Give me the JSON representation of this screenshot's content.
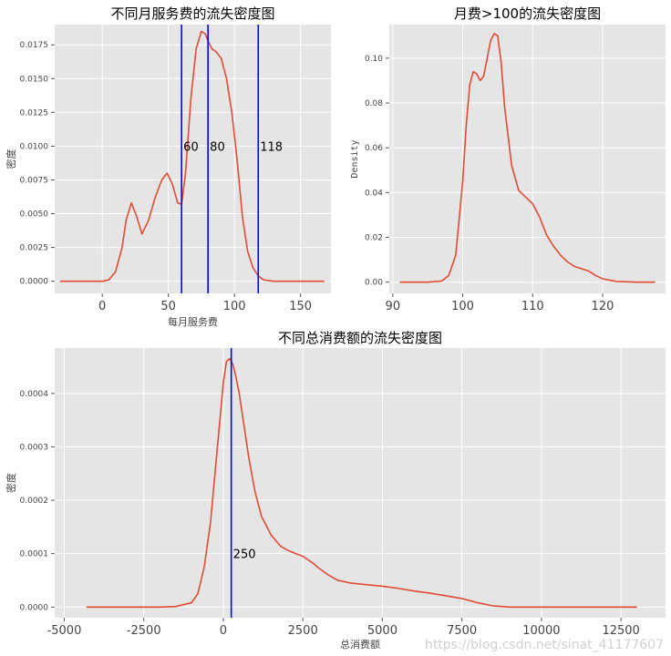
{
  "colors": {
    "panel_bg": "#e5e5e5",
    "grid": "#ffffff",
    "curve": "#e24a33",
    "vline": "#0000ff"
  },
  "watermark": "https://blog.csdn.net/sinat_41177607",
  "chart_data": [
    {
      "id": "monthly",
      "type": "line",
      "title": "不同月服务费的流失密度图",
      "xlabel": "每月服务费",
      "ylabel": "密度",
      "xlim": [
        -36,
        173
      ],
      "ylim": [
        -0.0009,
        0.019
      ],
      "xticks": [
        0,
        50,
        100,
        150
      ],
      "xtick_labels": [
        "0",
        "50",
        "100",
        "150"
      ],
      "yticks": [
        0,
        0.0025,
        0.005,
        0.0075,
        0.01,
        0.0125,
        0.015,
        0.0175
      ],
      "ytick_labels": [
        "0.0000",
        "0.0025",
        "0.0050",
        "0.0075",
        "0.0100",
        "0.0125",
        "0.0150",
        "0.0175"
      ],
      "grid": true,
      "series": [
        {
          "x": [
            -32,
            -20,
            -10,
            0,
            5,
            10,
            15,
            18,
            22,
            26,
            30,
            35,
            40,
            45,
            49,
            53,
            57,
            60,
            63,
            67,
            71,
            75,
            78,
            80,
            83,
            86,
            90,
            94,
            98,
            102,
            106,
            110,
            114,
            118,
            122,
            130,
            140,
            150,
            160,
            168
          ],
          "y": [
            0,
            0,
            0,
            0,
            0.0001,
            0.0007,
            0.0025,
            0.0045,
            0.0058,
            0.0048,
            0.0035,
            0.0045,
            0.0062,
            0.0075,
            0.008,
            0.0072,
            0.0058,
            0.0057,
            0.008,
            0.0135,
            0.0172,
            0.0185,
            0.0183,
            0.0178,
            0.0172,
            0.017,
            0.0165,
            0.015,
            0.0125,
            0.009,
            0.0048,
            0.0022,
            0.001,
            0.0004,
            0.0001,
            0,
            0,
            0,
            0,
            0
          ]
        }
      ],
      "vlines": [
        60,
        80,
        118
      ],
      "annotations": [
        {
          "x": 60,
          "y": 0.01,
          "text": "60"
        },
        {
          "x": 80,
          "y": 0.01,
          "text": "80"
        },
        {
          "x": 118,
          "y": 0.01,
          "text": "118"
        }
      ]
    },
    {
      "id": "over100",
      "type": "line",
      "title": "月费>100的流失密度图",
      "xlabel": "",
      "ylabel": "Density",
      "xlim": [
        89.5,
        129
      ],
      "ylim": [
        -0.005,
        0.115
      ],
      "xticks": [
        90,
        100,
        110,
        120
      ],
      "xtick_labels": [
        "90",
        "100",
        "110",
        "120"
      ],
      "yticks": [
        0,
        0.02,
        0.04,
        0.06,
        0.08,
        0.1
      ],
      "ytick_labels": [
        "0.00",
        "0.02",
        "0.04",
        "0.06",
        "0.08",
        "0.10"
      ],
      "grid": true,
      "series": [
        {
          "x": [
            91,
            95,
            97,
            98,
            99,
            100,
            100.5,
            101,
            101.5,
            102,
            102.5,
            103,
            103.5,
            104,
            104.5,
            105,
            105.5,
            106,
            107,
            108,
            109,
            110,
            111,
            112,
            113,
            114,
            115,
            116,
            117,
            118,
            119,
            120,
            122,
            125,
            127.5
          ],
          "y": [
            0,
            0,
            0.0005,
            0.003,
            0.012,
            0.045,
            0.07,
            0.088,
            0.094,
            0.093,
            0.09,
            0.092,
            0.1,
            0.108,
            0.111,
            0.11,
            0.098,
            0.078,
            0.052,
            0.041,
            0.038,
            0.035,
            0.029,
            0.021,
            0.016,
            0.012,
            0.009,
            0.007,
            0.006,
            0.005,
            0.003,
            0.0015,
            0.0003,
            0,
            0
          ]
        }
      ],
      "vlines": [],
      "annotations": []
    },
    {
      "id": "total",
      "type": "line",
      "title": "不同总消费额的流失密度图",
      "xlabel": "总消费额",
      "ylabel": "密度",
      "xlim": [
        -5300,
        13900
      ],
      "ylim": [
        -2e-05,
        0.000485
      ],
      "xticks": [
        -5000,
        -2500,
        0,
        2500,
        5000,
        7500,
        10000,
        12500
      ],
      "xtick_labels": [
        "-5000",
        "-2500",
        "0",
        "2500",
        "5000",
        "7500",
        "10000",
        "12500"
      ],
      "yticks": [
        0,
        0.0001,
        0.0002,
        0.0003,
        0.0004
      ],
      "ytick_labels": [
        "0.0000",
        "0.0001",
        "0.0002",
        "0.0003",
        "0.0004"
      ],
      "grid": true,
      "series": [
        {
          "x": [
            -4300,
            -2000,
            -1500,
            -1000,
            -800,
            -600,
            -400,
            -200,
            0,
            100,
            200,
            300,
            400,
            500,
            600,
            700,
            800,
            1000,
            1200,
            1500,
            1800,
            2000,
            2200,
            2500,
            2800,
            3000,
            3300,
            3600,
            4000,
            4500,
            5000,
            5500,
            6000,
            6500,
            7000,
            7500,
            8000,
            8500,
            9000,
            10000,
            11000,
            12000,
            13000
          ],
          "y": [
            0,
            0,
            1e-06,
            8e-06,
            2.5e-05,
            7.5e-05,
            0.00016,
            0.00029,
            0.00042,
            0.00046,
            0.000465,
            0.000455,
            0.00043,
            0.0004,
            0.00036,
            0.00032,
            0.00028,
            0.000215,
            0.00017,
            0.000135,
            0.000114,
            0.000107,
            0.000102,
            9.5e-05,
            8.3e-05,
            7.3e-05,
            6e-05,
            5e-05,
            4.5e-05,
            4.2e-05,
            3.9e-05,
            3.5e-05,
            3e-05,
            2.6e-05,
            2.1e-05,
            1.6e-05,
            8e-06,
            2e-06,
            0,
            0,
            0,
            0,
            0
          ]
        }
      ],
      "vlines": [
        250
      ],
      "annotations": [
        {
          "x": 250,
          "y": 0.0001,
          "text": "250"
        }
      ]
    }
  ]
}
